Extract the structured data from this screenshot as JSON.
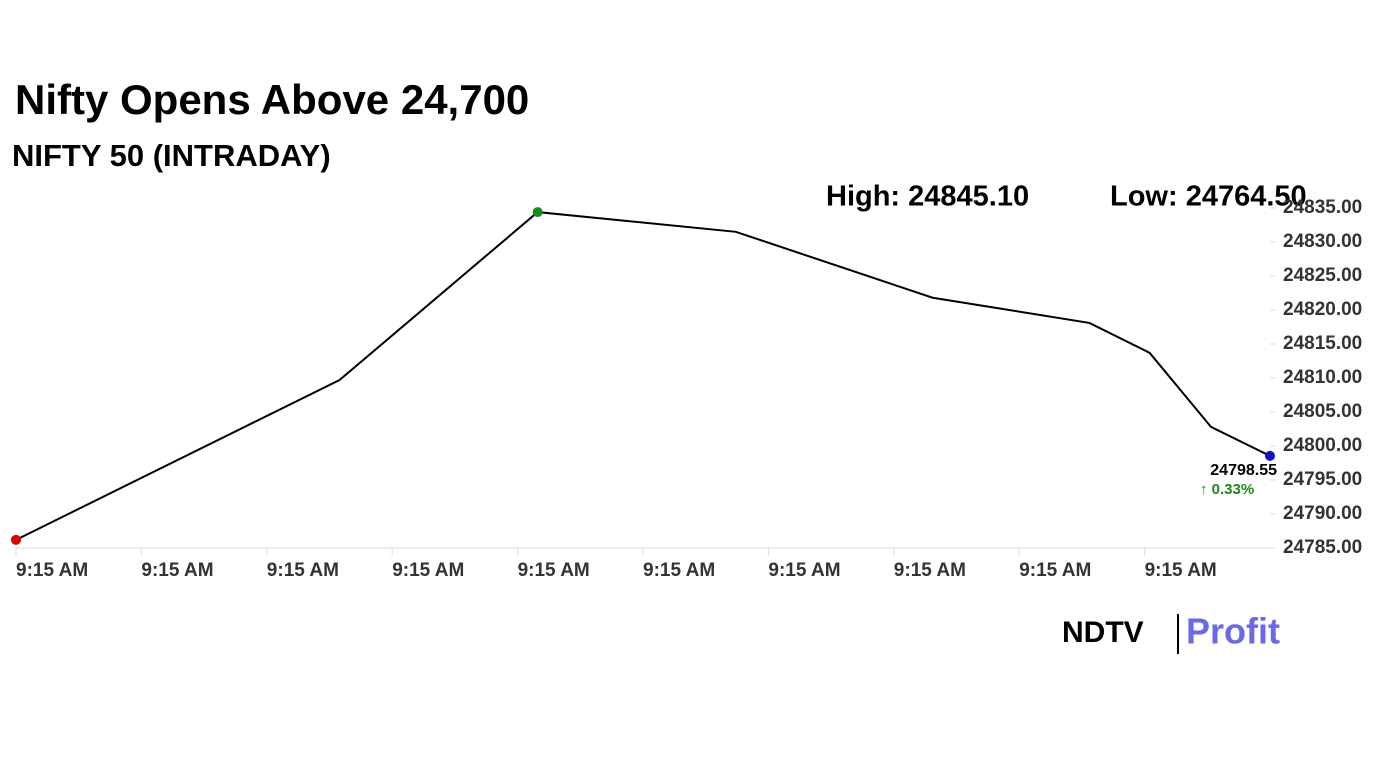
{
  "chart_data": {
    "type": "line",
    "title": "Nifty Opens Above 24,700",
    "subtitle": "NIFTY 50 (INTRADAY)",
    "annotations": {
      "high": "High: 24845.10",
      "low": "Low: 24764.50",
      "change": "↑ 0.33%"
    },
    "brand": {
      "left": "NDTV",
      "right": "Profit"
    },
    "x": [
      0,
      2.58,
      4.16,
      5.74,
      7.31,
      8.56,
      9.04,
      9.53,
      10
    ],
    "series": [
      {
        "name": "NIFTY 50",
        "color": "#000000",
        "values": [
          24786.2,
          24809.7,
          24834.4,
          24831.5,
          24821.8,
          24818.1,
          24813.7,
          24802.8,
          24798.55
        ],
        "marker_colors": [
          "#e00000",
          null,
          "#1a8a1a",
          null,
          null,
          null,
          null,
          null,
          "#1010c8"
        ]
      }
    ],
    "xlim": [
      0,
      10
    ],
    "xticks": [
      {
        "value": 0,
        "label": "9:15 AM"
      },
      {
        "value": 1,
        "label": "9:15 AM"
      },
      {
        "value": 2,
        "label": "9:15 AM"
      },
      {
        "value": 3,
        "label": "9:15 AM"
      },
      {
        "value": 4,
        "label": "9:15 AM"
      },
      {
        "value": 5,
        "label": "9:15 AM"
      },
      {
        "value": 6,
        "label": "9:15 AM"
      },
      {
        "value": 7,
        "label": "9:15 AM"
      },
      {
        "value": 8,
        "label": "9:15 AM"
      },
      {
        "value": 9,
        "label": "9:15 AM"
      }
    ],
    "ylim": [
      24785,
      24835
    ],
    "yticks": [
      {
        "value": 24785,
        "label": "24785.00"
      },
      {
        "value": 24790,
        "label": "24790.00"
      },
      {
        "value": 24795,
        "label": "24795.00"
      },
      {
        "value": 24800,
        "label": "24800.00"
      },
      {
        "value": 24805,
        "label": "24805.00"
      },
      {
        "value": 24810,
        "label": "24810.00"
      },
      {
        "value": 24815,
        "label": "24815.00"
      },
      {
        "value": 24820,
        "label": "24820.00"
      },
      {
        "value": 24825,
        "label": "24825.00"
      },
      {
        "value": 24830,
        "label": "24830.00"
      },
      {
        "value": 24835,
        "label": "24835.00"
      }
    ],
    "grid": false
  }
}
